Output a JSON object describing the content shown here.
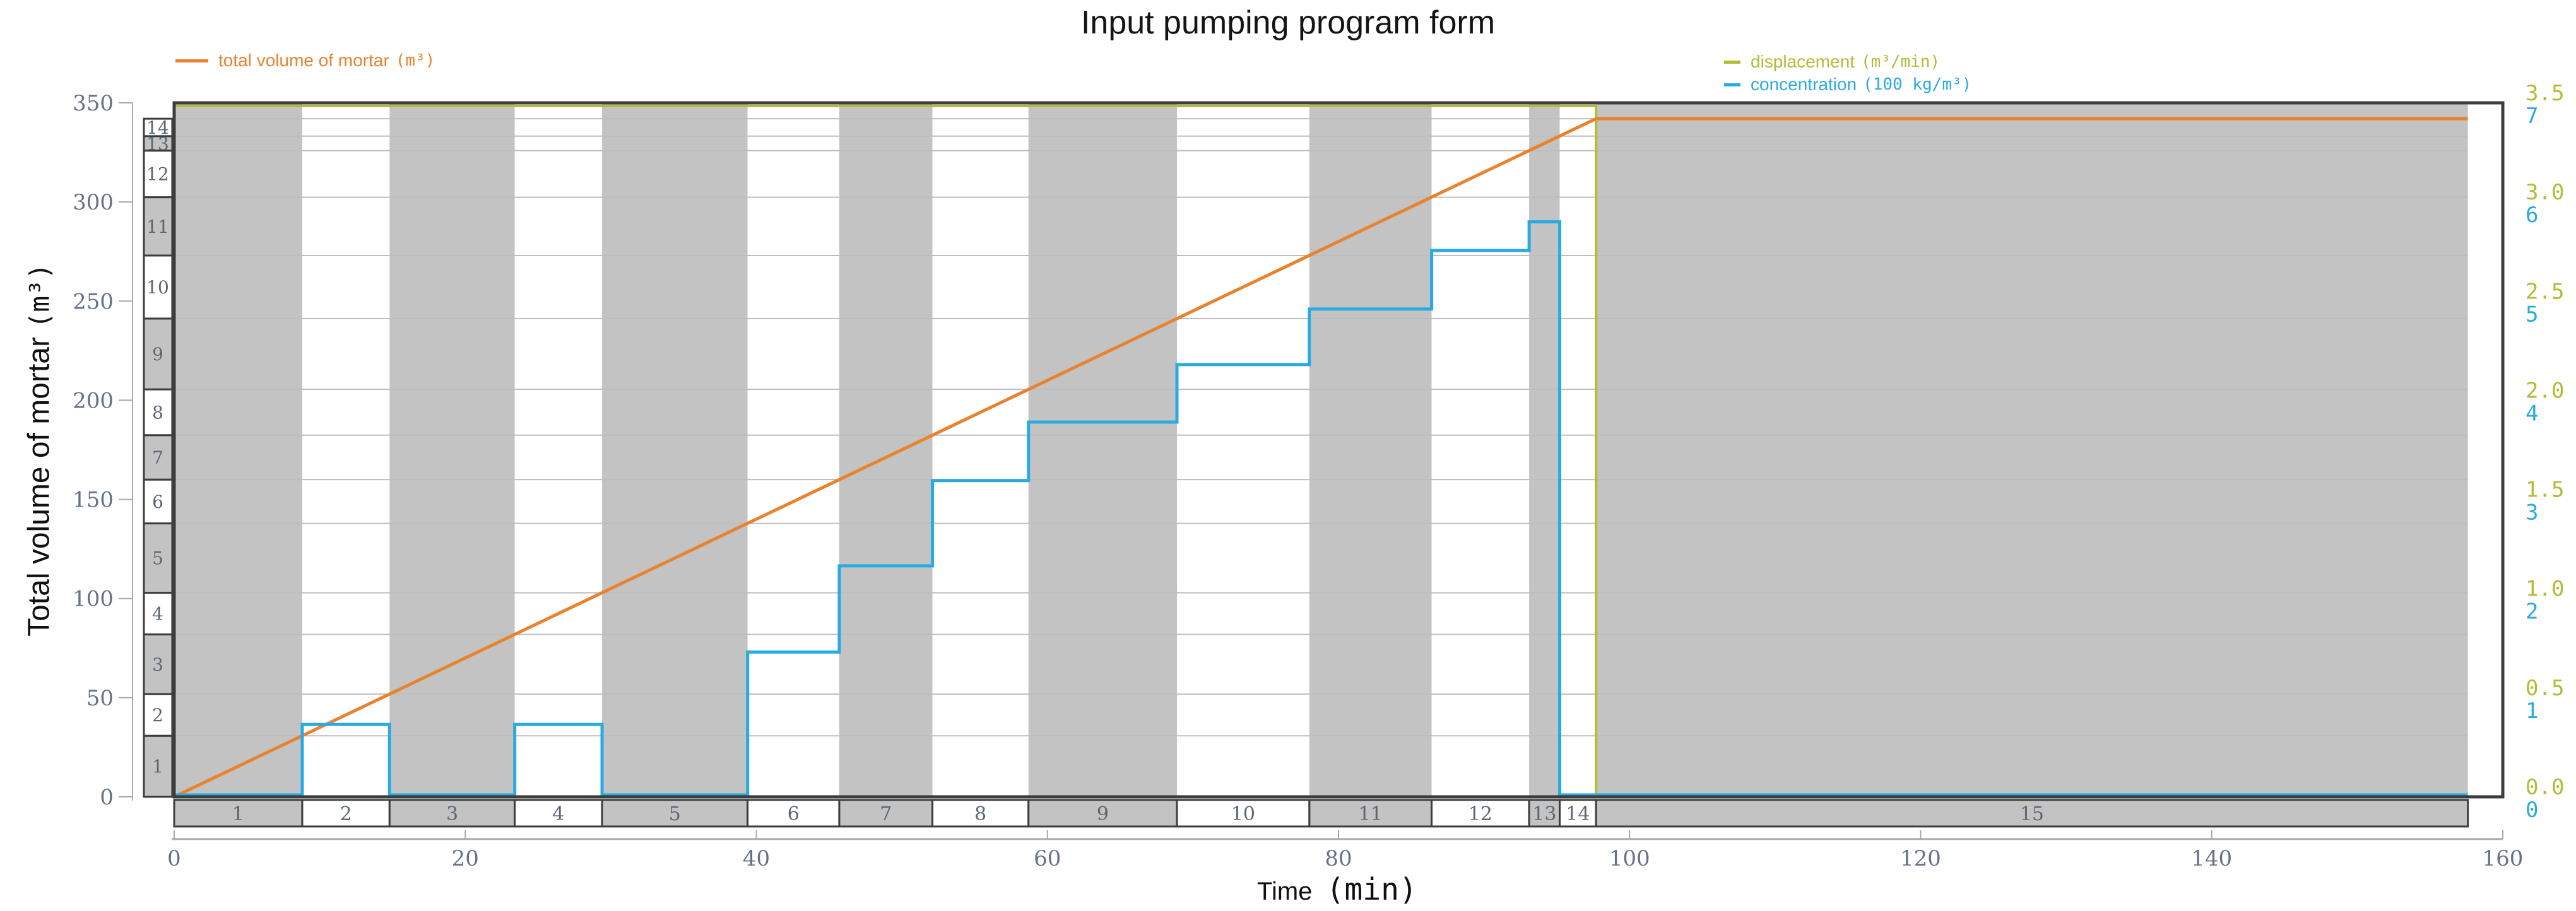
{
  "title": "Input pumping program form",
  "legend": {
    "volume": {
      "label": "total volume of mortar",
      "unit": "(m³)"
    },
    "displacement": {
      "label": "displacement",
      "unit": "(m³/min)"
    },
    "concentration": {
      "label": "concentration",
      "unit": "(100 kg/m³)"
    }
  },
  "axis": {
    "y_left": {
      "title": "Total volume of mortar",
      "unit": "(m³)",
      "ticks": [
        0,
        50,
        100,
        150,
        200,
        250,
        300,
        350
      ],
      "max": 350
    },
    "x": {
      "title": "Time",
      "unit": "(min)",
      "ticks": [
        0,
        20,
        40,
        60,
        80,
        100,
        120,
        140,
        160
      ],
      "max": 160
    },
    "y_right_displacement": {
      "ticks": [
        "0.0",
        "0.5",
        "1.0",
        "1.5",
        "2.0",
        "2.5",
        "3.0",
        "3.5"
      ],
      "max": 3.5
    },
    "y_right_concentration": {
      "ticks": [
        "0",
        "1",
        "2",
        "3",
        "4",
        "5",
        "6",
        "7"
      ],
      "max": 7
    }
  },
  "chart_data": {
    "type": "line",
    "title": "Input pumping program form",
    "xlabel": "Time (min)",
    "ylabel_left": "Total volume of mortar (m³)",
    "ylabel_right": [
      "displacement (m³/min)",
      "concentration (100 kg/m³)"
    ],
    "x_range": [
      0,
      160
    ],
    "y_left_range": [
      0,
      350
    ],
    "y_right_disp_range": [
      0,
      3.5
    ],
    "y_right_conc_range": [
      0,
      7
    ],
    "grid": "horizontal-at-stage-volumes",
    "legend_position": "top",
    "stages": [
      {
        "id": 1,
        "t_start": 0,
        "t_end": 8.8,
        "band": "gray",
        "displacement": 3.5,
        "concentration": 0,
        "cum_volume": 30.8
      },
      {
        "id": 2,
        "t_start": 8.8,
        "t_end": 14.8,
        "band": "white",
        "displacement": 3.5,
        "concentration": 0.73,
        "cum_volume": 51.8
      },
      {
        "id": 3,
        "t_start": 14.8,
        "t_end": 23.4,
        "band": "gray",
        "displacement": 3.5,
        "concentration": 0,
        "cum_volume": 81.9
      },
      {
        "id": 4,
        "t_start": 23.4,
        "t_end": 29.4,
        "band": "white",
        "displacement": 3.5,
        "concentration": 0.73,
        "cum_volume": 102.9
      },
      {
        "id": 5,
        "t_start": 29.4,
        "t_end": 39.4,
        "band": "gray",
        "displacement": 3.5,
        "concentration": 0,
        "cum_volume": 137.9
      },
      {
        "id": 6,
        "t_start": 39.4,
        "t_end": 45.7,
        "band": "white",
        "displacement": 3.5,
        "concentration": 1.46,
        "cum_volume": 160.0
      },
      {
        "id": 7,
        "t_start": 45.7,
        "t_end": 52.1,
        "band": "gray",
        "displacement": 3.5,
        "concentration": 2.33,
        "cum_volume": 182.4
      },
      {
        "id": 8,
        "t_start": 52.1,
        "t_end": 58.7,
        "band": "white",
        "displacement": 3.5,
        "concentration": 3.19,
        "cum_volume": 205.5
      },
      {
        "id": 9,
        "t_start": 58.7,
        "t_end": 68.9,
        "band": "gray",
        "displacement": 3.5,
        "concentration": 3.78,
        "cum_volume": 241.2
      },
      {
        "id": 10,
        "t_start": 68.9,
        "t_end": 78.0,
        "band": "white",
        "displacement": 3.5,
        "concentration": 4.36,
        "cum_volume": 273.0
      },
      {
        "id": 11,
        "t_start": 78.0,
        "t_end": 86.4,
        "band": "gray",
        "displacement": 3.5,
        "concentration": 4.92,
        "cum_volume": 302.4
      },
      {
        "id": 12,
        "t_start": 86.4,
        "t_end": 93.1,
        "band": "white",
        "displacement": 3.5,
        "concentration": 5.51,
        "cum_volume": 325.9
      },
      {
        "id": 13,
        "t_start": 93.1,
        "t_end": 95.2,
        "band": "gray",
        "displacement": 3.5,
        "concentration": 5.8,
        "cum_volume": 333.2
      },
      {
        "id": 14,
        "t_start": 95.2,
        "t_end": 97.7,
        "band": "white",
        "displacement": 3.5,
        "concentration": 0,
        "cum_volume": 342.0
      },
      {
        "id": 15,
        "t_start": 97.7,
        "t_end": 157.6,
        "band": "gray",
        "displacement": 0,
        "concentration": 0,
        "cum_volume": 342.0
      }
    ],
    "total_volume_line": {
      "points": [
        [
          0,
          0
        ],
        [
          97.7,
          342
        ],
        [
          157.6,
          342
        ]
      ]
    },
    "displacement_line": {
      "points": [
        [
          0,
          3.5
        ],
        [
          97.7,
          3.5
        ],
        [
          97.7,
          0
        ],
        [
          157.6,
          0
        ]
      ]
    },
    "colors": {
      "volume": "#e8822e",
      "displacement": "#b2bc35",
      "concentration": "#29abe2",
      "band_gray": "#c3c3c3",
      "band_white": "#ffffff",
      "frame": "#3d3d3d",
      "grid": "#bdbdbd",
      "spine": "#a8a8a8",
      "tick_text": "#63718a",
      "stage_text": "#5c6675"
    }
  }
}
